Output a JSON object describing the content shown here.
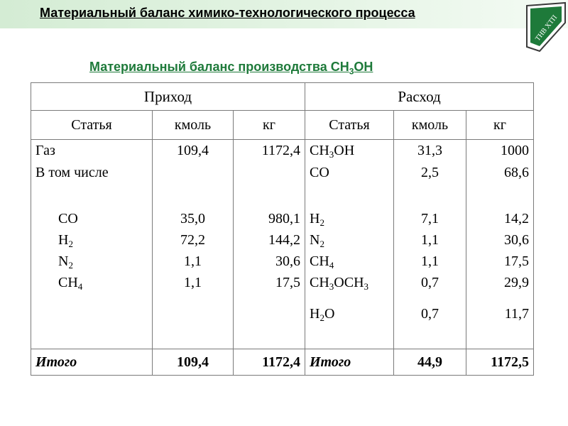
{
  "slide_title": "Материальный баланс химико-технологического процесса",
  "logo_text": "ТНВ ХТП",
  "subtitle": {
    "text": "Материальный баланс производства CH",
    "sub": "3",
    "tail": "OH"
  },
  "colors": {
    "accent_green": "#1e7a3a",
    "band": "#d4ecd4",
    "border": "#7a7a7a"
  },
  "table": {
    "header_left": "Приход",
    "header_right": "Расход",
    "columns": [
      "Статья",
      "кмоль",
      "кг",
      "Статья",
      "кмоль",
      "кг"
    ],
    "income": [
      {
        "name": "Газ",
        "sub": "",
        "kmol": "109,4",
        "kg": "1172,4"
      },
      {
        "name": "В том числе",
        "sub": "",
        "kmol": "",
        "kg": ""
      },
      {
        "name": "CO",
        "sub": "",
        "kmol": "35,0",
        "kg": "980,1"
      },
      {
        "name": "H",
        "sub": "2",
        "kmol": "72,2",
        "kg": "144,2"
      },
      {
        "name": "N",
        "sub": "2",
        "kmol": "1,1",
        "kg": "30,6"
      },
      {
        "name": "CH",
        "sub": "4",
        "kmol": "1,1",
        "kg": "17,5"
      }
    ],
    "expense": [
      {
        "name": "CH",
        "sub": "3",
        "tail": "OH",
        "kmol": "31,3",
        "kg": "1000"
      },
      {
        "name": "CO",
        "sub": "",
        "tail": "",
        "kmol": "2,5",
        "kg": "68,6"
      },
      {
        "name": "H",
        "sub": "2",
        "tail": "",
        "kmol": "7,1",
        "kg": "14,2"
      },
      {
        "name": "N",
        "sub": "2",
        "tail": "",
        "kmol": "1,1",
        "kg": "30,6"
      },
      {
        "name": "CH",
        "sub": "4",
        "tail": "",
        "kmol": "1,1",
        "kg": "17,5"
      },
      {
        "name": "CH",
        "sub": "3",
        "tail": "OCH",
        "tail_sub": "3",
        "kmol": "0,7",
        "kg": "29,9"
      },
      {
        "name": "H",
        "sub": "2",
        "tail": "O",
        "kmol": "0,7",
        "kg": "11,7"
      }
    ],
    "total_income": {
      "label": "Итого",
      "kmol": "109,4",
      "kg": "1172,4"
    },
    "total_expense": {
      "label": "Итого",
      "kmol": "44,9",
      "kg": "1172,5"
    }
  }
}
